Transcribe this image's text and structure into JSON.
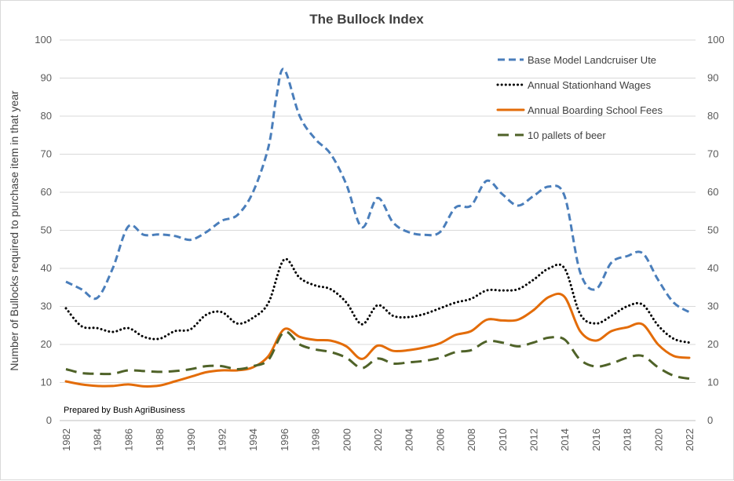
{
  "chart_data": {
    "type": "line",
    "title": "The Bullock Index",
    "ylabel": "Number of Bullocks required to purchase item in that year",
    "xlabel": "",
    "ylim": [
      0,
      100
    ],
    "y_ticks": [
      0,
      10,
      20,
      30,
      40,
      50,
      60,
      70,
      80,
      90,
      100
    ],
    "xlim": [
      1982,
      2022
    ],
    "x_ticks": [
      1982,
      1984,
      1986,
      1988,
      1990,
      1992,
      1994,
      1996,
      1998,
      2000,
      2002,
      2004,
      2006,
      2008,
      2010,
      2012,
      2014,
      2016,
      2018,
      2020,
      2022
    ],
    "grid": "horizontal",
    "legend_position": "top-right",
    "secondary_y_axis": true,
    "annotation": "Prepared by Bush AgriBusiness",
    "series": [
      {
        "name": "Base Model Landcruiser Ute",
        "color": "#4a7ebb",
        "dash": "dashed",
        "x": [
          1982,
          1983,
          1984,
          1985,
          1986,
          1987,
          1988,
          1989,
          1990,
          1991,
          1992,
          1993,
          1994,
          1995,
          1995.5,
          1996,
          1997,
          1998,
          1999,
          2000,
          2001,
          2002,
          2003,
          2004,
          2005,
          2006,
          2007,
          2008,
          2009,
          2010,
          2011,
          2012,
          2013,
          2014,
          2015,
          2016,
          2017,
          2018,
          2019,
          2020,
          2021,
          2022
        ],
        "y": [
          36.5,
          34.5,
          32.2,
          40,
          51,
          48.8,
          48.9,
          48.5,
          47.5,
          49.5,
          52.5,
          54,
          60,
          72,
          85,
          92.3,
          80,
          74,
          70,
          62,
          50.8,
          58.5,
          52,
          49.5,
          48.8,
          49.5,
          56,
          56.5,
          63,
          59.5,
          56.5,
          59,
          61.5,
          59,
          39,
          34.5,
          41.5,
          43.2,
          44,
          37,
          31,
          28.5
        ]
      },
      {
        "name": "Annual Stationhand Wages",
        "color": "#000000",
        "dash": "dotted",
        "x": [
          1982,
          1983,
          1984,
          1985,
          1986,
          1987,
          1988,
          1989,
          1990,
          1991,
          1992,
          1993,
          1994,
          1995,
          1996,
          1997,
          1998,
          1999,
          2000,
          2001,
          2002,
          2003,
          2004,
          2005,
          2006,
          2007,
          2008,
          2009,
          2010,
          2011,
          2012,
          2013,
          2014,
          2015,
          2016,
          2017,
          2018,
          2019,
          2020,
          2021,
          2022
        ],
        "y": [
          29.5,
          24.8,
          24.3,
          23.3,
          24.3,
          22,
          21.5,
          23.5,
          24,
          27.8,
          28.5,
          25.5,
          27,
          31,
          42.3,
          37.5,
          35.5,
          34.5,
          31,
          25.3,
          30.3,
          27.5,
          27.2,
          28,
          29.5,
          31,
          32,
          34.2,
          34.2,
          34.5,
          37,
          40,
          40,
          28,
          25.5,
          27.5,
          30,
          30.5,
          25,
          21.5,
          20.5
        ]
      },
      {
        "name": "Annual Boarding School Fees",
        "color": "#e36c09",
        "dash": "solid",
        "x": [
          1982,
          1983,
          1984,
          1985,
          1986,
          1987,
          1988,
          1989,
          1990,
          1991,
          1992,
          1993,
          1994,
          1995,
          1996,
          1997,
          1998,
          1999,
          2000,
          2001,
          2002,
          2003,
          2004,
          2005,
          2006,
          2007,
          2008,
          2009,
          2010,
          2011,
          2012,
          2013,
          2014,
          2015,
          2016,
          2017,
          2018,
          2019,
          2020,
          2021,
          2022
        ],
        "y": [
          10.3,
          9.5,
          9.1,
          9.1,
          9.5,
          9,
          9.2,
          10.3,
          11.5,
          12.7,
          13.2,
          13.2,
          14,
          17,
          24,
          22,
          21.2,
          21,
          19.5,
          16.2,
          19.7,
          18.3,
          18.5,
          19.2,
          20.3,
          22.5,
          23.5,
          26.5,
          26.3,
          26.5,
          29,
          32.5,
          32.5,
          23.5,
          21,
          23.5,
          24.5,
          25.3,
          20,
          17,
          16.5
        ]
      },
      {
        "name": "10 pallets of beer",
        "color": "#4f6228",
        "dash": "long-dash",
        "x": [
          1982,
          1983,
          1984,
          1985,
          1986,
          1987,
          1988,
          1989,
          1990,
          1991,
          1992,
          1993,
          1994,
          1995,
          1996,
          1997,
          1998,
          1999,
          2000,
          2001,
          2002,
          2003,
          2004,
          2005,
          2006,
          2007,
          2008,
          2009,
          2010,
          2011,
          2012,
          2013,
          2014,
          2015,
          2016,
          2017,
          2018,
          2019,
          2020,
          2021,
          2022
        ],
        "y": [
          13.5,
          12.5,
          12.3,
          12.3,
          13.2,
          13,
          12.8,
          13,
          13.5,
          14.3,
          14.3,
          13.5,
          14.3,
          16,
          23.3,
          20,
          18.7,
          18,
          16.5,
          13.8,
          16.3,
          15,
          15.3,
          15.7,
          16.5,
          18,
          18.5,
          20.8,
          20.5,
          19.5,
          20.5,
          21.8,
          21.3,
          16,
          14.2,
          15,
          16.5,
          17,
          14,
          11.8,
          11
        ]
      }
    ]
  }
}
